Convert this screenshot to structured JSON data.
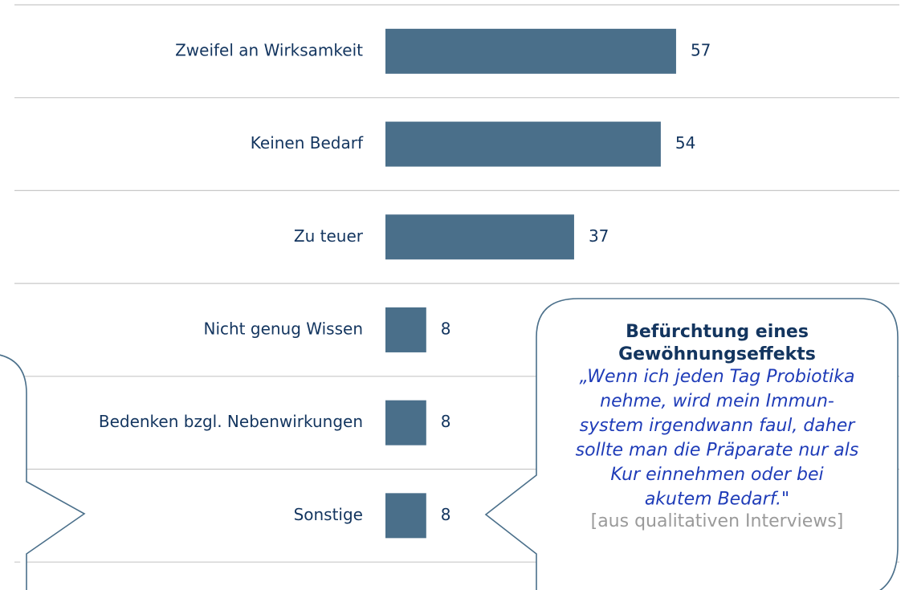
{
  "chart_data": {
    "type": "bar",
    "categories": [
      "Zweifel an Wirksamkeit",
      "Keinen Bedarf",
      "Zu teuer",
      "Nicht genug Wissen",
      "Bedenken bzgl. Nebenwirkungen",
      "Sonstige"
    ],
    "values": [
      57,
      54,
      37,
      8,
      8,
      8
    ],
    "color": "#4a6f8a",
    "callout": {
      "title": [
        "Befürchtung eines",
        "Gewöhnungseffekts"
      ],
      "quote": [
        "„Wenn ich jeden Tag Probiotika",
        "nehme, wird mein Immun-",
        "system irgendwann faul, daher",
        "sollte man die Präparate nur als",
        "Kur einnehmen oder bei",
        "akutem Bedarf.\""
      ],
      "source": "[aus qualitativen Interviews]"
    }
  }
}
